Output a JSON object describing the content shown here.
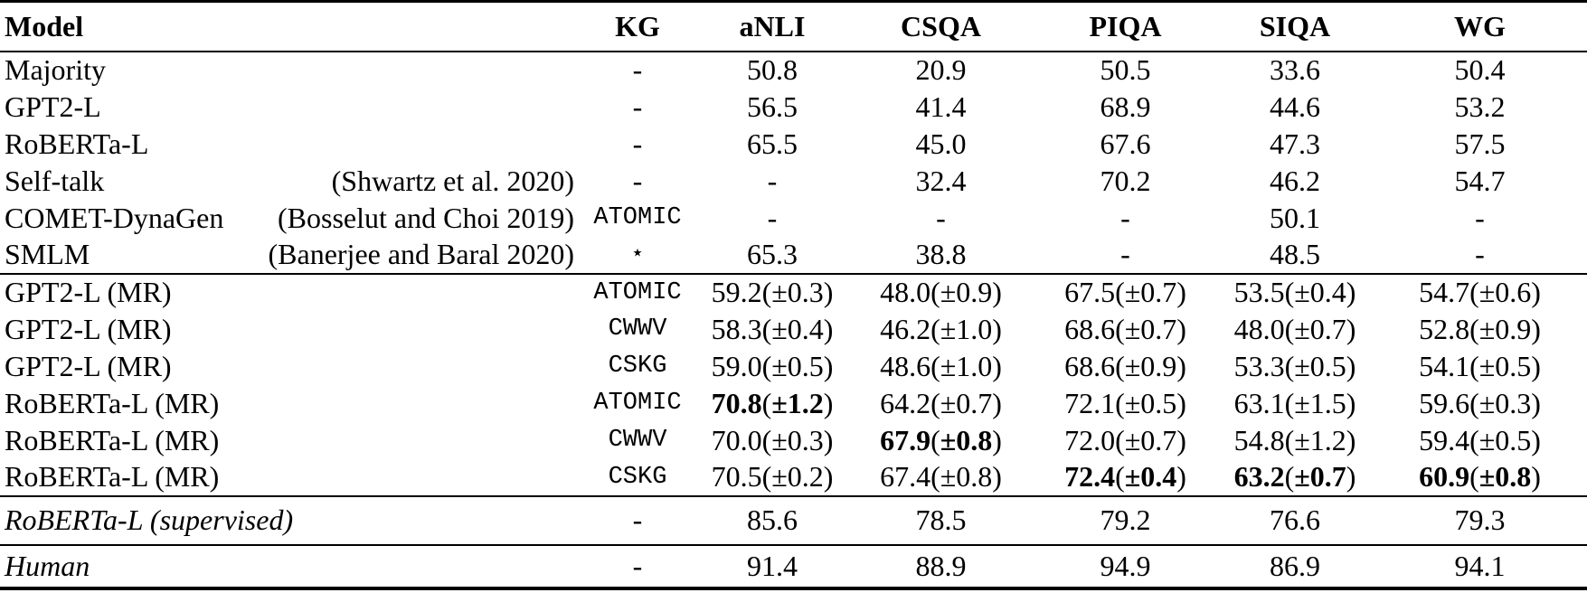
{
  "table": {
    "columns": [
      {
        "label": "Model"
      },
      {
        "label": "KG"
      },
      {
        "label": "aNLI"
      },
      {
        "label": "CSQA"
      },
      {
        "label": "PIQA"
      },
      {
        "label": "SIQA"
      },
      {
        "label": "WG"
      }
    ],
    "sections": [
      {
        "name": "baselines",
        "rows": [
          {
            "model": "Majority",
            "kg": "-",
            "cells": [
              "50.8",
              "20.9",
              "50.5",
              "33.6",
              "50.4"
            ]
          },
          {
            "model": "GPT2-L",
            "kg": "-",
            "cells": [
              "56.5",
              "41.4",
              "68.9",
              "44.6",
              "53.2"
            ]
          },
          {
            "model": "RoBERTa-L",
            "kg": "-",
            "cells": [
              "65.5",
              "45.0",
              "67.6",
              "47.3",
              "57.5"
            ]
          },
          {
            "model": "Self-talk",
            "citation": "(Shwartz et al. 2020)",
            "kg": "-",
            "cells": [
              "-",
              "32.4",
              "70.2",
              "46.2",
              "54.7"
            ]
          },
          {
            "model": "COMET-DynaGen",
            "citation": "(Bosselut and Choi 2019)",
            "kg": "ATOMIC",
            "kg_mono": true,
            "cells": [
              "-",
              "-",
              "-",
              "50.1",
              "-"
            ]
          },
          {
            "model": "SMLM",
            "citation": "(Banerjee and Baral 2020)",
            "kg": "⋆",
            "kg_mono": true,
            "cells": [
              "65.3",
              "38.8",
              "-",
              "48.5",
              "-"
            ]
          }
        ]
      },
      {
        "name": "mr-models",
        "rows": [
          {
            "model": "GPT2-L (MR)",
            "kg": "ATOMIC",
            "kg_mono": true,
            "cells": [
              {
                "v": "59.2",
                "pm": "0.3"
              },
              {
                "v": "48.0",
                "pm": "0.9"
              },
              {
                "v": "67.5",
                "pm": "0.7"
              },
              {
                "v": "53.5",
                "pm": "0.4"
              },
              {
                "v": "54.7",
                "pm": "0.6"
              }
            ]
          },
          {
            "model": "GPT2-L (MR)",
            "kg": "CWWV",
            "kg_mono": true,
            "cells": [
              {
                "v": "58.3",
                "pm": "0.4"
              },
              {
                "v": "46.2",
                "pm": "1.0"
              },
              {
                "v": "68.6",
                "pm": "0.7"
              },
              {
                "v": "48.0",
                "pm": "0.7"
              },
              {
                "v": "52.8",
                "pm": "0.9"
              }
            ]
          },
          {
            "model": "GPT2-L (MR)",
            "kg": "CSKG",
            "kg_mono": true,
            "cells": [
              {
                "v": "59.0",
                "pm": "0.5"
              },
              {
                "v": "48.6",
                "pm": "1.0"
              },
              {
                "v": "68.6",
                "pm": "0.9"
              },
              {
                "v": "53.3",
                "pm": "0.5"
              },
              {
                "v": "54.1",
                "pm": "0.5"
              }
            ]
          },
          {
            "model": "RoBERTa-L (MR)",
            "kg": "ATOMIC",
            "kg_mono": true,
            "cells": [
              {
                "v": "70.8",
                "pm": "1.2",
                "b": true
              },
              {
                "v": "64.2",
                "pm": "0.7"
              },
              {
                "v": "72.1",
                "pm": "0.5"
              },
              {
                "v": "63.1",
                "pm": "1.5"
              },
              {
                "v": "59.6",
                "pm": "0.3"
              }
            ]
          },
          {
            "model": "RoBERTa-L (MR)",
            "kg": "CWWV",
            "kg_mono": true,
            "cells": [
              {
                "v": "70.0",
                "pm": "0.3"
              },
              {
                "v": "67.9",
                "pm": "0.8",
                "b": true
              },
              {
                "v": "72.0",
                "pm": "0.7"
              },
              {
                "v": "54.8",
                "pm": "1.2"
              },
              {
                "v": "59.4",
                "pm": "0.5"
              }
            ]
          },
          {
            "model": "RoBERTa-L (MR)",
            "kg": "CSKG",
            "kg_mono": true,
            "cells": [
              {
                "v": "70.5",
                "pm": "0.2"
              },
              {
                "v": "67.4",
                "pm": "0.8"
              },
              {
                "v": "72.4",
                "pm": "0.4",
                "b": true
              },
              {
                "v": "63.2",
                "pm": "0.7",
                "b": true
              },
              {
                "v": "60.9",
                "pm": "0.8",
                "b": true
              }
            ]
          }
        ]
      },
      {
        "name": "supervised",
        "rows": [
          {
            "model": "RoBERTa-L (supervised)",
            "italic": true,
            "kg": "-",
            "cells": [
              "85.6",
              "78.5",
              "79.2",
              "76.6",
              "79.3"
            ]
          }
        ]
      },
      {
        "name": "human",
        "rows": [
          {
            "model": "Human",
            "italic": true,
            "kg": "-",
            "cells": [
              "91.4",
              "88.9",
              "94.9",
              "86.9",
              "94.1"
            ]
          }
        ]
      }
    ],
    "pm_prefix": "±"
  }
}
